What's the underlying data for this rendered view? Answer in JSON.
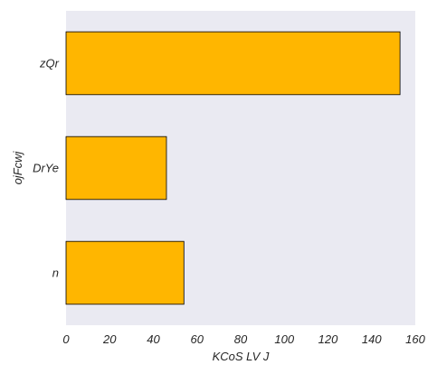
{
  "chart_data": {
    "type": "bar",
    "orientation": "horizontal",
    "categories": [
      "zQr",
      "DrYe",
      "n"
    ],
    "values": [
      153,
      46,
      54
    ],
    "xlabel": "KCoS LV J",
    "ylabel": "ojFcwj",
    "xlim": [
      0,
      160
    ],
    "xticks": [
      0,
      20,
      40,
      60,
      80,
      100,
      120,
      140,
      160
    ],
    "grid": false,
    "bar_color": "#FFB600",
    "background_color": "#EAEAF2"
  }
}
